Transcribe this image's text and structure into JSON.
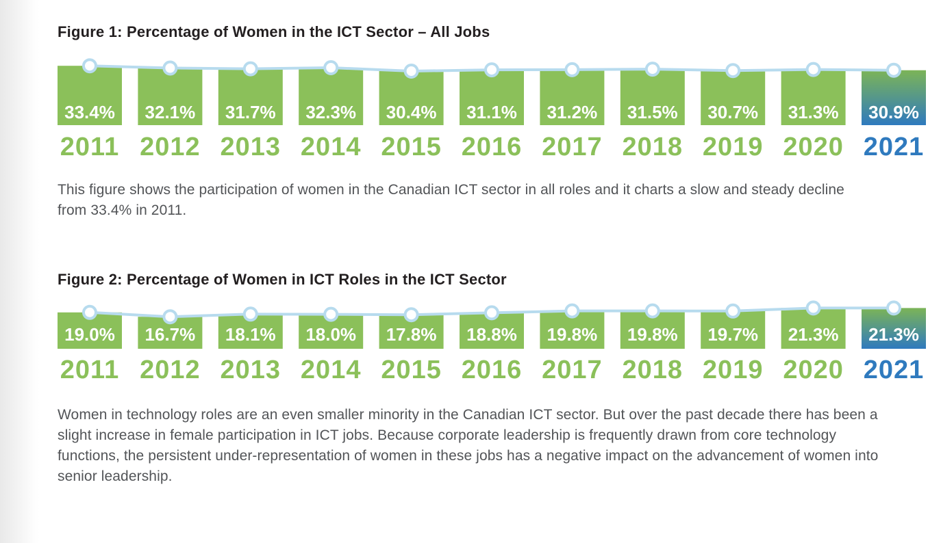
{
  "figure1": {
    "title": "Figure 1: Percentage of Women in the ICT Sector – All Jobs",
    "caption": "This figure shows the participation of women in the Canadian ICT sector in all roles and it charts a slow and steady decline from 33.4% in 2011."
  },
  "figure2": {
    "title": "Figure 2: Percentage of Women in ICT Roles in the ICT Sector",
    "caption": "Women in technology roles are an even smaller minority in the Canadian ICT sector. But over the past decade there has been a slight increase in female participation in ICT jobs. Because corporate leadership is frequently drawn from core technology functions, the persistent under-representation of women in these jobs has a negative impact on the advancement of women into senior leadership."
  },
  "chart_data": [
    {
      "type": "bar",
      "title": "Figure 1: Percentage of Women in the ICT Sector – All Jobs",
      "categories": [
        "2011",
        "2012",
        "2013",
        "2014",
        "2015",
        "2016",
        "2017",
        "2018",
        "2019",
        "2020",
        "2021"
      ],
      "values": [
        33.4,
        32.1,
        31.7,
        32.3,
        30.4,
        31.1,
        31.2,
        31.5,
        30.7,
        31.3,
        30.9
      ],
      "value_labels": [
        "33.4%",
        "32.1%",
        "31.7%",
        "32.3%",
        "30.4%",
        "31.1%",
        "31.2%",
        "31.5%",
        "30.7%",
        "31.3%",
        "30.9%"
      ],
      "unit": "%",
      "highlight_category": "2021",
      "legend": "none",
      "grid": "off",
      "overlay_line": "marker line across bar tops"
    },
    {
      "type": "bar",
      "title": "Figure 2: Percentage of Women in ICT Roles in the ICT Sector",
      "categories": [
        "2011",
        "2012",
        "2013",
        "2014",
        "2015",
        "2016",
        "2017",
        "2018",
        "2019",
        "2020",
        "2021"
      ],
      "values": [
        19.0,
        16.7,
        18.1,
        18.0,
        17.8,
        18.8,
        19.8,
        19.8,
        19.7,
        21.3,
        21.3
      ],
      "value_labels": [
        "19.0%",
        "16.7%",
        "18.1%",
        "18.0%",
        "17.8%",
        "18.8%",
        "19.8%",
        "19.8%",
        "19.7%",
        "21.3%",
        "21.3%"
      ],
      "unit": "%",
      "highlight_category": "2021",
      "legend": "none",
      "grid": "off",
      "overlay_line": "marker line across bar tops"
    }
  ],
  "colors": {
    "bar_green": "#8bc05a",
    "year_green": "#8bc05a",
    "highlight_blue": "#2f7abe",
    "gradient_top_green": "#7cb457",
    "line_light_blue": "#b7dbee",
    "marker_fill": "#ffffff",
    "value_label_white": "#ffffff",
    "title_dark": "#231f20",
    "body_gray": "#525457"
  }
}
